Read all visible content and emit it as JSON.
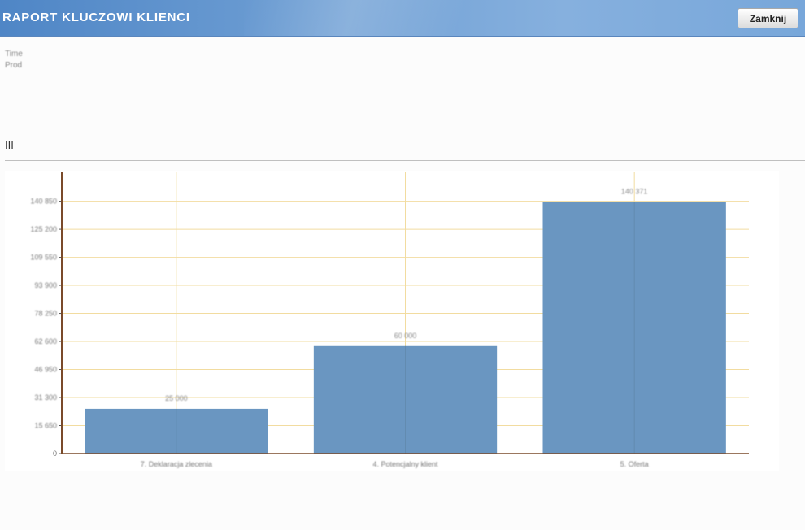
{
  "header": {
    "title": "RAPORT KLUCZOWI KLIENCI",
    "close_label": "Zamknij"
  },
  "meta": {
    "line1": "Time",
    "line2": "Prod"
  },
  "section": {
    "label": "III"
  },
  "colors": {
    "bar": "#6a96c1",
    "grid": "#f2dca0",
    "axis": "#7a4a2a",
    "header": "#5a8fcb"
  },
  "chart_data": {
    "type": "bar",
    "categories": [
      "7. Deklaracja zlecenia",
      "4. Potencjalny klient",
      "5. Oferta"
    ],
    "values": [
      25000,
      60000,
      140371
    ],
    "value_labels": [
      "25 000",
      "60 000",
      "140 371"
    ],
    "ylim": [
      0,
      157000
    ],
    "yticks": [
      0,
      15650,
      31300,
      46950,
      62600,
      78250,
      93900,
      109550,
      125200,
      140850
    ],
    "ytick_labels": [
      "0",
      "15 650",
      "31 300",
      "46 950",
      "62 600",
      "78 250",
      "93 900",
      "109 550",
      "125 200",
      "140 850"
    ],
    "grid": true,
    "title": "",
    "xlabel": "",
    "ylabel": ""
  }
}
